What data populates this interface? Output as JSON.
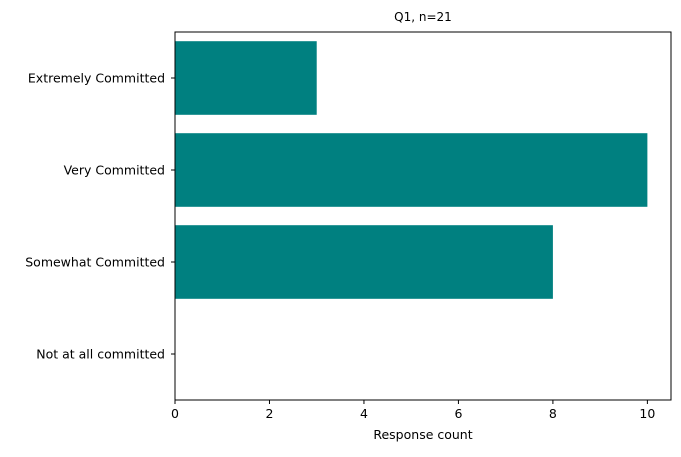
{
  "chart_data": {
    "type": "bar",
    "orientation": "horizontal",
    "title": "Q1, n=21",
    "xlabel": "Response count",
    "ylabel": "",
    "categories": [
      "Extremely Committed",
      "Very Committed",
      "Somewhat Committed",
      "Not at all committed"
    ],
    "values": [
      3,
      10,
      8,
      0
    ],
    "xlim": [
      0,
      10.5
    ],
    "xticks": [
      0,
      2,
      4,
      6,
      8,
      10
    ],
    "grid": false,
    "legend": "none",
    "bar_color": "#008080"
  }
}
